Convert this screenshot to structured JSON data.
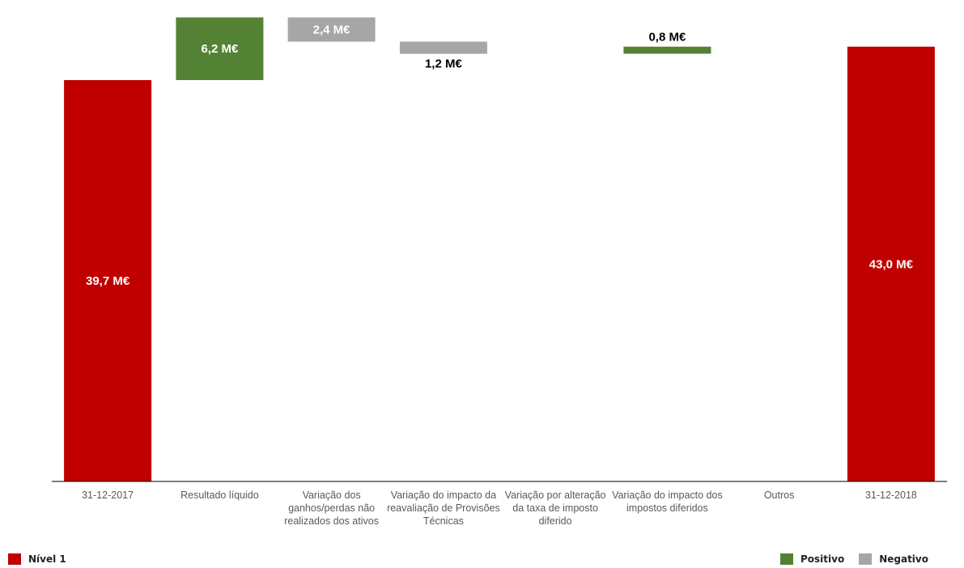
{
  "chart_data": {
    "type": "bar",
    "subtype": "waterfall",
    "title": "",
    "xlabel": "",
    "ylabel": "",
    "ylim": [
      0,
      46.5
    ],
    "grid": false,
    "categories": [
      "31-12-2017",
      "Resultado líquido",
      "Variação dos ganhos/perdas não realizados dos ativos",
      "Variação do impacto da reavaliação de Provisões Técnicas",
      "Variação por alteração da taxa de imposto diferido",
      "Variação do impacto dos impostos diferidos",
      "Outros",
      "31-12-2018"
    ],
    "category_lines": [
      [
        "31-12-2017"
      ],
      [
        "Resultado líquido"
      ],
      [
        "Variação dos",
        "ganhos/perdas não",
        "realizados dos ativos"
      ],
      [
        "Variação do impacto da",
        "reavaliação de Provisões",
        "Técnicas"
      ],
      [
        "Variação por alteração",
        "da taxa de imposto",
        "diferido"
      ],
      [
        "Variação do impacto dos",
        "impostos diferidos"
      ],
      [
        "Outros"
      ],
      [
        "31-12-2018"
      ]
    ],
    "bars": [
      {
        "kind": "total",
        "start": 0,
        "end": 39.7,
        "label": "39,7 M€"
      },
      {
        "kind": "positive",
        "start": 39.7,
        "end": 45.9,
        "label": "6,2 M€"
      },
      {
        "kind": "negative",
        "start": 45.9,
        "end": 43.5,
        "label": "2,4 M€"
      },
      {
        "kind": "negative",
        "start": 43.5,
        "end": 42.3,
        "label": "1,2 M€"
      },
      {
        "kind": "none",
        "start": 42.3,
        "end": 42.3,
        "label": ""
      },
      {
        "kind": "positive",
        "start": 42.3,
        "end": 43.0,
        "label": "0,8 M€"
      },
      {
        "kind": "none",
        "start": 43.0,
        "end": 43.0,
        "label": ""
      },
      {
        "kind": "total",
        "start": 0,
        "end": 43.0,
        "label": "43,0 M€"
      }
    ],
    "colors": {
      "total": "#c00000",
      "positive": "#548235",
      "negative": "#a6a6a6"
    },
    "legend": {
      "left": [
        {
          "name": "Nível 1",
          "key": "total"
        }
      ],
      "right": [
        {
          "name": "Positivo",
          "key": "positive"
        },
        {
          "name": "Negativo",
          "key": "negative"
        }
      ]
    }
  }
}
